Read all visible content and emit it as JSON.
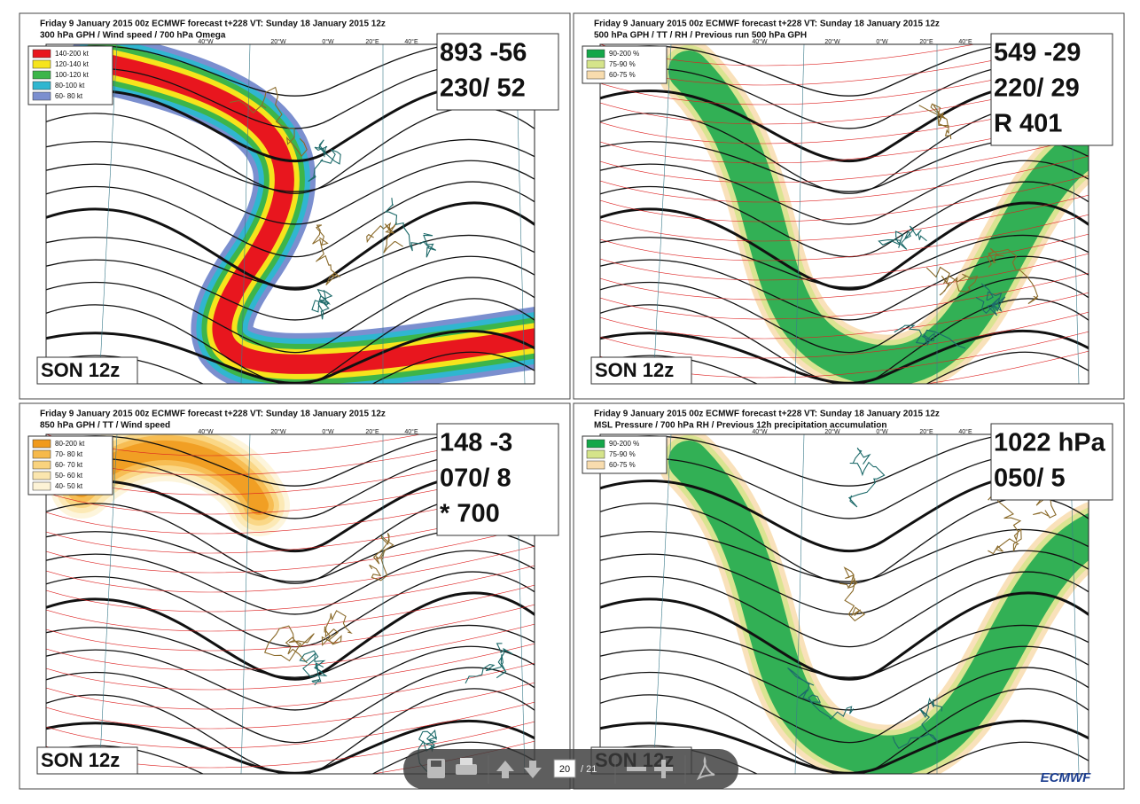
{
  "panels": [
    {
      "header_line1": "Friday    9 January   2015 00z ECMWF forecast t+228  VT: Sunday    18 January   2015 12z",
      "header_line2": "300 hPa GPH / Wind speed / 700 hPa Omega",
      "legend": [
        {
          "label": "140-200 kt",
          "color": "#e8161e"
        },
        {
          "label": "120-140 kt",
          "color": "#f6e41c"
        },
        {
          "label": "100-120 kt",
          "color": "#3db54a"
        },
        {
          "label": "80-100 kt",
          "color": "#30b6d0"
        },
        {
          "label": "60- 80 kt",
          "color": "#7b8fcf"
        }
      ],
      "info_lines": [
        "893 -56",
        "230/ 52"
      ],
      "station_label": "SON 12z"
    },
    {
      "header_line1": "Friday    9 January   2015 00z ECMWF forecast t+228  VT: Sunday    18 January   2015 12z",
      "header_line2": "500 hPa GPH / TT / RH / Previous run 500 hPa GPH",
      "legend": [
        {
          "label": "90-200 %",
          "color": "#14a74a"
        },
        {
          "label": "75-90 %",
          "color": "#d5e48a"
        },
        {
          "label": "60-75 %",
          "color": "#f8dcae"
        }
      ],
      "info_lines": [
        "549 -29",
        "220/ 29",
        "R 401"
      ],
      "station_label": "SON 12z"
    },
    {
      "header_line1": "Friday    9 January   2015 00z ECMWF forecast t+228  VT: Sunday    18 January   2015 12z",
      "header_line2": "850 hPa GPH / TT / Wind speed",
      "legend": [
        {
          "label": "80-200 kt",
          "color": "#f09a1c"
        },
        {
          "label": "70- 80 kt",
          "color": "#f6b94a"
        },
        {
          "label": "60- 70 kt",
          "color": "#f9d37e"
        },
        {
          "label": "50- 60 kt",
          "color": "#fbe6ae"
        },
        {
          "label": "40- 50 kt",
          "color": "#fdf3d6"
        }
      ],
      "info_lines": [
        "148  -3",
        "070/  8",
        "*  700"
      ],
      "station_label": "SON 12z"
    },
    {
      "header_line1": "Friday    9 January   2015 00z ECMWF forecast t+228  VT: Sunday    18 January   2015 12z",
      "header_line2": "MSL Pressure / 700 hPa RH / Previous 12h precipitation accumulation",
      "legend": [
        {
          "label": "90-200 %",
          "color": "#14a74a"
        },
        {
          "label": "75-90 %",
          "color": "#d5e48a"
        },
        {
          "label": "60-75 %",
          "color": "#f8dcae"
        }
      ],
      "info_lines": [
        "1022 hPa",
        "050/  5"
      ],
      "station_label": "SON 12z"
    }
  ],
  "geo_labels": [
    "40°W",
    "20°W",
    "0°W",
    "20°E",
    "40°E"
  ],
  "toolbar": {
    "page_current": "20",
    "page_total": "/ 21"
  },
  "logo": "ECMWF"
}
